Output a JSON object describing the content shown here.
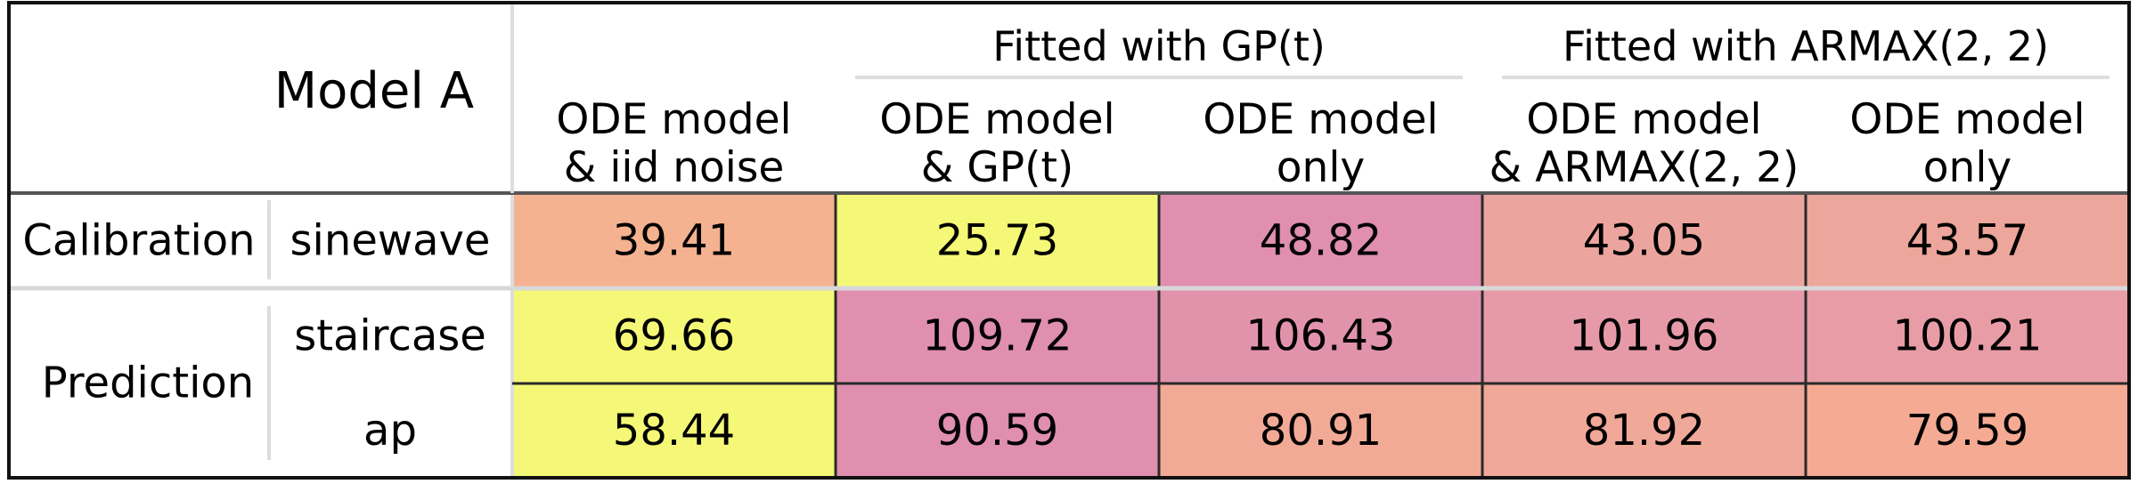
{
  "chart_data": {
    "type": "table",
    "corner_title": "Model A",
    "group_headers": [
      {
        "label": "Fitted with GP(t)",
        "spans": [
          1,
          2
        ]
      },
      {
        "label": "Fitted with ARMAX(2, 2)",
        "spans": [
          3,
          4
        ]
      }
    ],
    "columns": [
      {
        "line1": "ODE model",
        "line2": "& iid noise"
      },
      {
        "line1": "ODE model",
        "line2": "& GP(t)"
      },
      {
        "line1": "ODE model",
        "line2": "only"
      },
      {
        "line1": "ODE model",
        "line2": "& ARMAX(2, 2)"
      },
      {
        "line1": "ODE model",
        "line2": "only"
      }
    ],
    "row_groups": [
      {
        "label": "Calibration",
        "rows": [
          0
        ]
      },
      {
        "label": "Prediction",
        "rows": [
          1,
          2
        ]
      }
    ],
    "rows": [
      {
        "label": "sinewave",
        "values": [
          39.41,
          25.73,
          48.82,
          43.05,
          43.57
        ]
      },
      {
        "label": "staircase",
        "values": [
          69.66,
          109.72,
          106.43,
          101.96,
          100.21
        ]
      },
      {
        "label": "ap",
        "values": [
          58.44,
          90.59,
          80.91,
          81.92,
          79.59
        ]
      }
    ],
    "cell_colors": [
      [
        "#f5b290",
        "#f5f876",
        "#e08fae",
        "#eca59e",
        "#eda69b"
      ],
      [
        "#f5f876",
        "#e08fae",
        "#e293ac",
        "#e69aa8",
        "#e89da6"
      ],
      [
        "#f5f876",
        "#e08fae",
        "#f2aa96",
        "#f0a899",
        "#f5aa93"
      ]
    ]
  }
}
